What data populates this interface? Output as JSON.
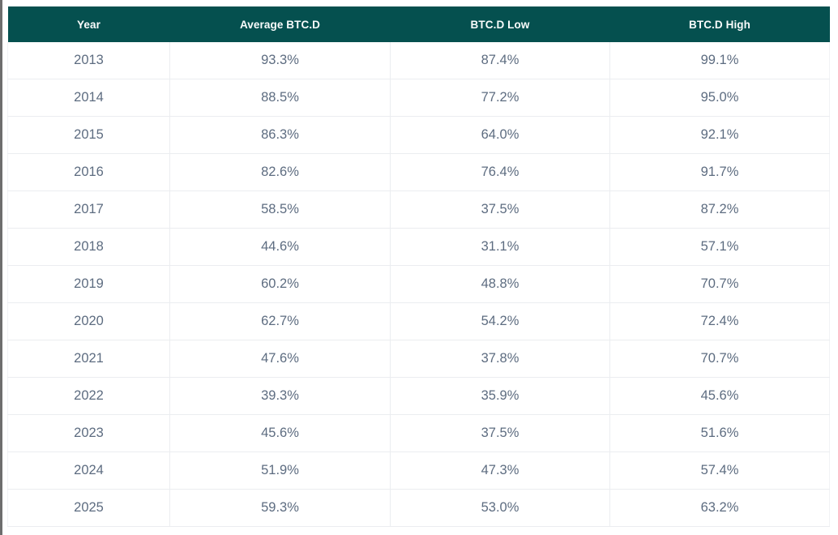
{
  "colors": {
    "header_bg": "#05504f",
    "header_text": "#fafcfc",
    "cell_text": "#5d6c80",
    "row_border": "#ebedf0",
    "edge_strip": "#6e6e6e",
    "page_bg": "#ffffff"
  },
  "chart_data": {
    "type": "table",
    "title": "",
    "columns": [
      "Year",
      "Average BTC.D",
      "BTC.D Low",
      "BTC.D High"
    ],
    "rows": [
      [
        "2013",
        "93.3%",
        "87.4%",
        "99.1%"
      ],
      [
        "2014",
        "88.5%",
        "77.2%",
        "95.0%"
      ],
      [
        "2015",
        "86.3%",
        "64.0%",
        "92.1%"
      ],
      [
        "2016",
        "82.6%",
        "76.4%",
        "91.7%"
      ],
      [
        "2017",
        "58.5%",
        "37.5%",
        "87.2%"
      ],
      [
        "2018",
        "44.6%",
        "31.1%",
        "57.1%"
      ],
      [
        "2019",
        "60.2%",
        "48.8%",
        "70.7%"
      ],
      [
        "2020",
        "62.7%",
        "54.2%",
        "72.4%"
      ],
      [
        "2021",
        "47.6%",
        "37.8%",
        "70.7%"
      ],
      [
        "2022",
        "39.3%",
        "35.9%",
        "45.6%"
      ],
      [
        "2023",
        "45.6%",
        "37.5%",
        "51.6%"
      ],
      [
        "2024",
        "51.9%",
        "47.3%",
        "57.4%"
      ],
      [
        "2025",
        "59.3%",
        "53.0%",
        "63.2%"
      ]
    ]
  }
}
